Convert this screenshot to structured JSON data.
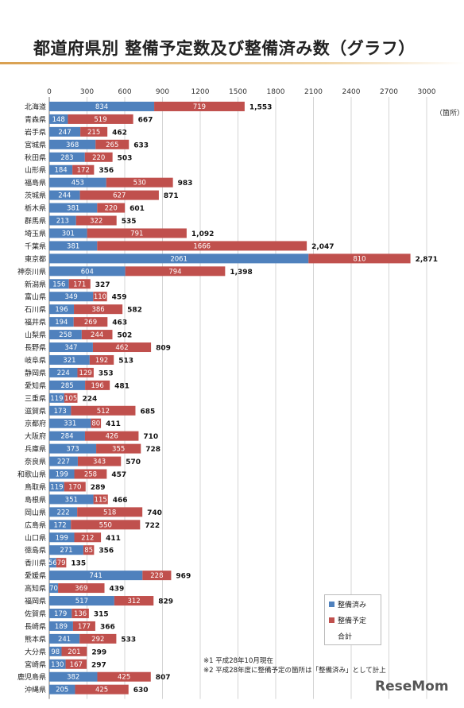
{
  "page_title": "都道府県別 整備予定数及び整備済み数（グラフ）",
  "unit_label": "（箇所）",
  "notes": [
    "※1 平成28年10月現在",
    "※2 平成28年度に整備予定の箇所は「整備済み」として計上"
  ],
  "logo_text": "ReseMom",
  "colors": {
    "done": "#4f81bd",
    "planned": "#c0504d"
  },
  "chart_data": {
    "type": "bar",
    "orientation": "horizontal",
    "stacked": true,
    "title": "都道府県別 整備予定数及び整備済み数（グラフ）",
    "xlim": [
      0,
      3000
    ],
    "xticks": [
      "0",
      "300",
      "600",
      "900",
      "1200",
      "1500",
      "1800",
      "2100",
      "2400",
      "2700",
      "3000"
    ],
    "legend_position": "bottom-right",
    "legend": [
      "整備済み",
      "整備予定",
      "合計"
    ],
    "categories": [
      "北海道",
      "青森県",
      "岩手県",
      "宮城県",
      "秋田県",
      "山形県",
      "福島県",
      "茨城県",
      "栃木県",
      "群馬県",
      "埼玉県",
      "千葉県",
      "東京都",
      "神奈川県",
      "新潟県",
      "富山県",
      "石川県",
      "福井県",
      "山梨県",
      "長野県",
      "岐阜県",
      "静岡県",
      "愛知県",
      "三重県",
      "滋賀県",
      "京都府",
      "大阪府",
      "兵庫県",
      "奈良県",
      "和歌山県",
      "鳥取県",
      "島根県",
      "岡山県",
      "広島県",
      "山口県",
      "徳島県",
      "香川県",
      "愛媛県",
      "高知県",
      "福岡県",
      "佐賀県",
      "長崎県",
      "熊本県",
      "大分県",
      "宮崎県",
      "鹿児島県",
      "沖縄県"
    ],
    "series": [
      {
        "name": "整備済み",
        "color": "#4f81bd",
        "values": [
          834,
          148,
          247,
          368,
          283,
          184,
          453,
          244,
          381,
          213,
          301,
          381,
          2061,
          604,
          156,
          349,
          196,
          194,
          258,
          347,
          321,
          224,
          285,
          119,
          173,
          331,
          284,
          373,
          227,
          199,
          119,
          351,
          222,
          172,
          199,
          271,
          56,
          741,
          70,
          517,
          179,
          189,
          241,
          98,
          130,
          382,
          205
        ]
      },
      {
        "name": "整備予定",
        "color": "#c0504d",
        "values": [
          719,
          519,
          215,
          265,
          220,
          172,
          530,
          627,
          220,
          322,
          791,
          1666,
          810,
          794,
          171,
          110,
          386,
          269,
          244,
          462,
          192,
          129,
          196,
          105,
          512,
          80,
          426,
          355,
          343,
          258,
          170,
          115,
          518,
          550,
          212,
          85,
          79,
          228,
          369,
          312,
          136,
          177,
          292,
          201,
          167,
          425,
          425
        ]
      }
    ],
    "total_labels": [
      "1,553",
      "667",
      "462",
      "633",
      "503",
      "356",
      "983",
      "871",
      "601",
      "535",
      "1,092",
      "2,047",
      "2,871",
      "1,398",
      "327",
      "459",
      "582",
      "463",
      "502",
      "809",
      "513",
      "353",
      "481",
      "224",
      "685",
      "411",
      "710",
      "728",
      "570",
      "457",
      "289",
      "466",
      "740",
      "722",
      "411",
      "356",
      "135",
      "969",
      "439",
      "829",
      "315",
      "366",
      "533",
      "299",
      "297",
      "807",
      "630"
    ]
  }
}
